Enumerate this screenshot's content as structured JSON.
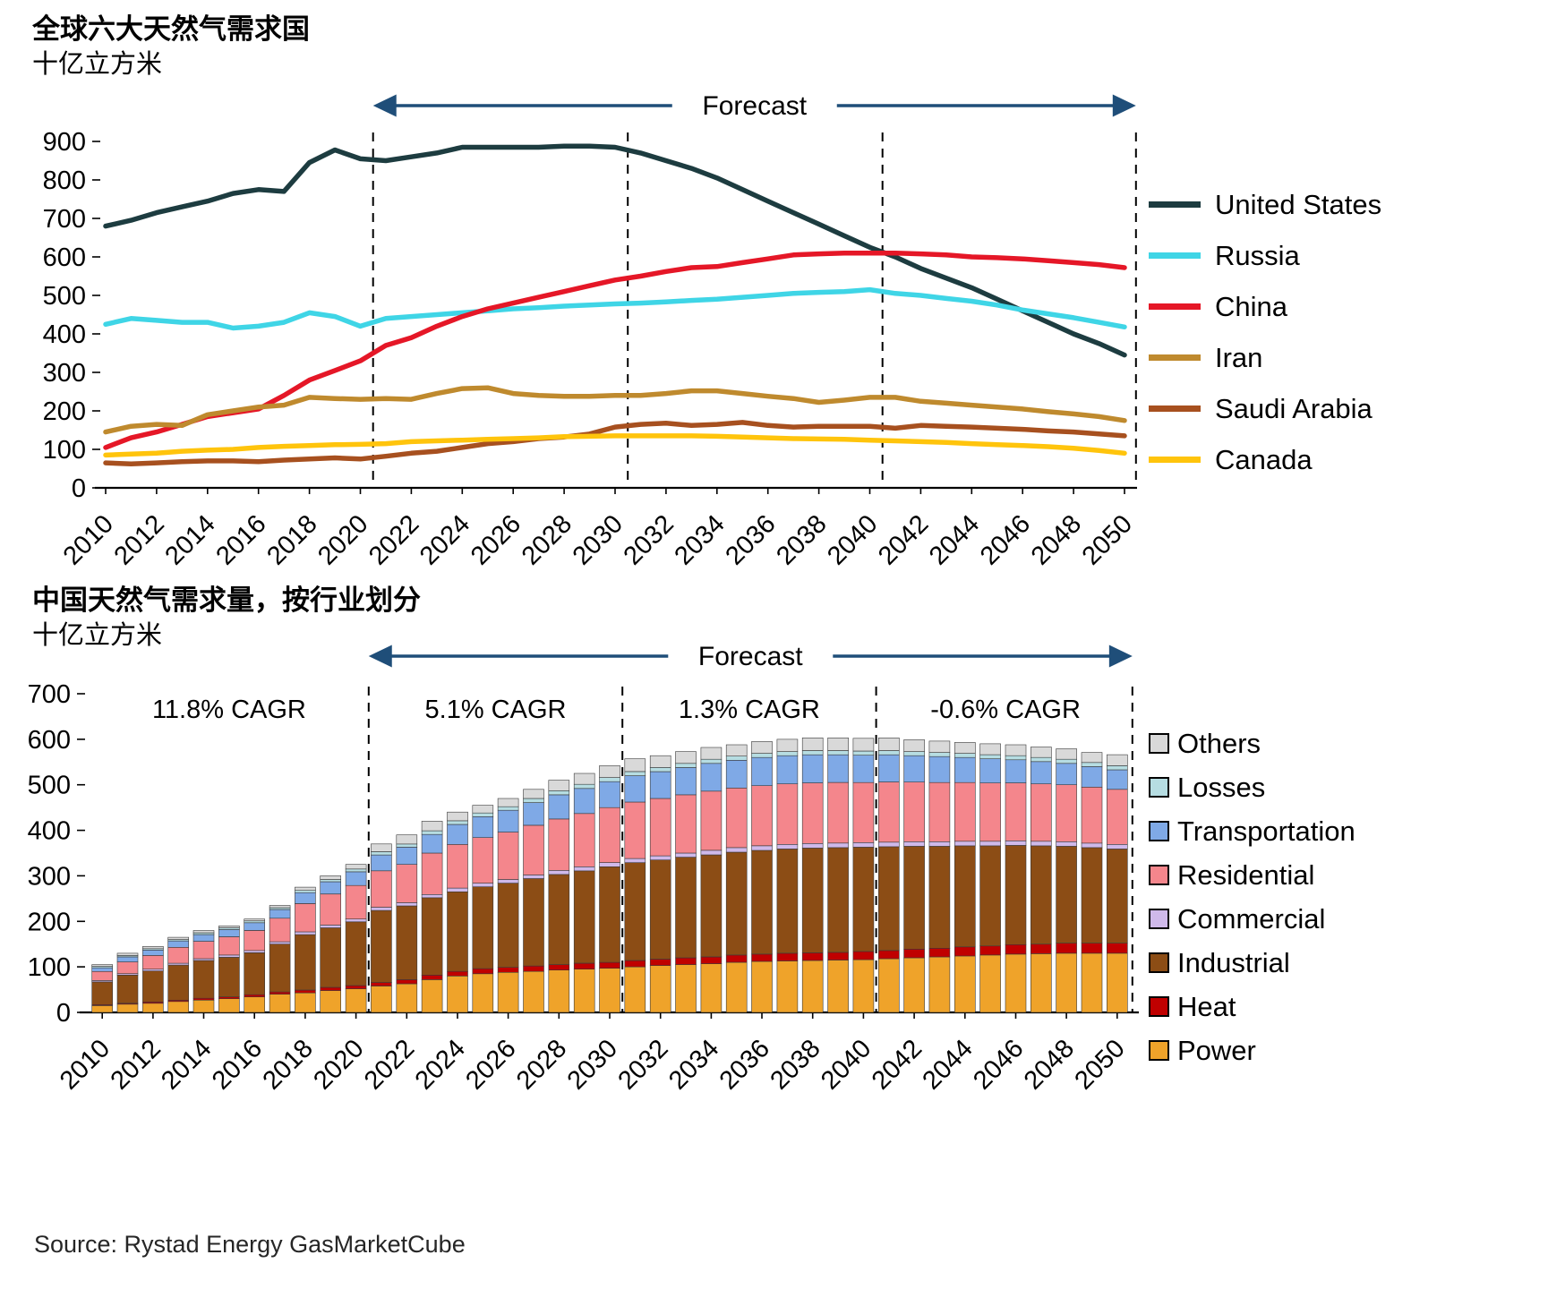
{
  "page": {
    "source_note": "Source: Rystad Energy GasMarketCube"
  },
  "chart_data": [
    {
      "type": "line",
      "title": "全球六大天然气需求国",
      "ylabel": "十亿立方米",
      "ylim": [
        0,
        900
      ],
      "ytick_step": 100,
      "grid": false,
      "legend_position": "right",
      "x": [
        2010,
        2011,
        2012,
        2013,
        2014,
        2015,
        2016,
        2017,
        2018,
        2019,
        2020,
        2021,
        2022,
        2023,
        2024,
        2025,
        2026,
        2027,
        2028,
        2029,
        2030,
        2031,
        2032,
        2033,
        2034,
        2035,
        2036,
        2037,
        2038,
        2039,
        2040,
        2041,
        2042,
        2043,
        2044,
        2045,
        2046,
        2047,
        2048,
        2049,
        2050
      ],
      "dashed_x": [
        2020.5,
        2030.5,
        2040.5,
        2050.45
      ],
      "forecast": {
        "label": "Forecast",
        "from": 2020.5,
        "to": 2050.45,
        "color": "#1f4e79"
      },
      "series": [
        {
          "name": "United States",
          "color": "#1d3c40",
          "values": [
            680,
            695,
            715,
            730,
            745,
            765,
            775,
            770,
            845,
            878,
            855,
            850,
            860,
            870,
            885,
            885,
            885,
            885,
            888,
            888,
            885,
            870,
            850,
            830,
            805,
            775,
            745,
            715,
            685,
            655,
            625,
            600,
            570,
            545,
            520,
            490,
            460,
            430,
            400,
            375,
            345
          ]
        },
        {
          "name": "Russia",
          "color": "#3fd5e6",
          "values": [
            425,
            440,
            435,
            430,
            430,
            415,
            420,
            430,
            455,
            445,
            420,
            440,
            445,
            450,
            455,
            460,
            465,
            468,
            472,
            475,
            478,
            480,
            483,
            487,
            490,
            495,
            500,
            505,
            508,
            510,
            515,
            505,
            500,
            492,
            485,
            475,
            462,
            452,
            442,
            430,
            418
          ]
        },
        {
          "name": "China",
          "color": "#e51727",
          "values": [
            105,
            130,
            145,
            165,
            185,
            195,
            205,
            240,
            280,
            305,
            330,
            370,
            390,
            420,
            445,
            465,
            480,
            495,
            510,
            525,
            540,
            550,
            562,
            572,
            575,
            585,
            595,
            605,
            608,
            610,
            610,
            610,
            608,
            605,
            600,
            598,
            595,
            590,
            585,
            580,
            572
          ]
        },
        {
          "name": "Iran",
          "color": "#bf8a2e",
          "values": [
            145,
            160,
            165,
            162,
            190,
            200,
            210,
            215,
            235,
            232,
            230,
            232,
            230,
            245,
            258,
            260,
            245,
            240,
            238,
            238,
            240,
            240,
            245,
            252,
            252,
            245,
            238,
            232,
            222,
            228,
            235,
            235,
            225,
            220,
            215,
            210,
            205,
            198,
            192,
            185,
            175
          ]
        },
        {
          "name": "Saudi Arabia",
          "color": "#a7501f",
          "values": [
            65,
            62,
            65,
            68,
            70,
            70,
            68,
            72,
            75,
            78,
            75,
            82,
            90,
            95,
            105,
            115,
            120,
            128,
            132,
            140,
            158,
            165,
            168,
            162,
            165,
            170,
            162,
            158,
            160,
            160,
            160,
            155,
            162,
            160,
            158,
            155,
            152,
            148,
            145,
            140,
            135
          ]
        },
        {
          "name": "Canada",
          "color": "#ffc40c",
          "values": [
            85,
            88,
            90,
            95,
            98,
            100,
            105,
            108,
            110,
            112,
            113,
            115,
            120,
            122,
            124,
            126,
            128,
            130,
            133,
            134,
            135,
            135,
            135,
            135,
            134,
            132,
            130,
            128,
            127,
            126,
            124,
            122,
            120,
            118,
            115,
            112,
            110,
            107,
            103,
            97,
            90
          ]
        }
      ]
    },
    {
      "type": "bar",
      "stacked": true,
      "title": "中国天然气需求量，按行业划分",
      "ylabel": "十亿立方米",
      "ylim": [
        0,
        700
      ],
      "ytick_step": 100,
      "grid": false,
      "legend_position": "right",
      "x": [
        2010,
        2011,
        2012,
        2013,
        2014,
        2015,
        2016,
        2017,
        2018,
        2019,
        2020,
        2021,
        2022,
        2023,
        2024,
        2025,
        2026,
        2027,
        2028,
        2029,
        2030,
        2031,
        2032,
        2033,
        2034,
        2035,
        2036,
        2037,
        2038,
        2039,
        2040,
        2041,
        2042,
        2043,
        2044,
        2045,
        2046,
        2047,
        2048,
        2049,
        2050
      ],
      "dashed_x": [
        2020.5,
        2030.5,
        2040.5,
        2050.6
      ],
      "forecast": {
        "label": "Forecast",
        "from": 2020.5,
        "to": 2050.6,
        "color": "#1f4e79"
      },
      "cagr_annotations": [
        {
          "label": "11.8% CAGR",
          "x": 2015.0
        },
        {
          "label": "5.1% CAGR",
          "x": 2025.5
        },
        {
          "label": "1.3% CAGR",
          "x": 2035.5
        },
        {
          "label": "-0.6% CAGR",
          "x": 2045.6
        }
      ],
      "legend_order_top_to_bottom": [
        "Others",
        "Losses",
        "Transportation",
        "Residential",
        "Commercial",
        "Industrial",
        "Heat",
        "Power"
      ],
      "series": [
        {
          "name": "Power",
          "color": "#efa32a",
          "values": [
            15,
            18,
            20,
            24,
            27,
            30,
            34,
            40,
            43,
            48,
            52,
            58,
            63,
            72,
            80,
            85,
            88,
            90,
            93,
            95,
            97,
            100,
            103,
            105,
            107,
            110,
            112,
            113,
            114,
            115,
            116,
            118,
            120,
            122,
            124,
            126,
            128,
            129,
            130,
            130,
            130
          ]
        },
        {
          "name": "Heat",
          "color": "#c00000",
          "values": [
            2,
            2,
            3,
            3,
            4,
            4,
            5,
            5,
            6,
            7,
            7,
            8,
            9,
            10,
            10,
            11,
            11,
            12,
            12,
            13,
            13,
            14,
            14,
            15,
            15,
            16,
            16,
            17,
            17,
            17,
            18,
            18,
            19,
            19,
            20,
            20,
            21,
            21,
            22,
            22,
            22
          ]
        },
        {
          "name": "Industrial",
          "color": "#8c4d15",
          "values": [
            50,
            62,
            68,
            77,
            83,
            87,
            92,
            105,
            122,
            131,
            140,
            158,
            162,
            170,
            175,
            180,
            185,
            192,
            198,
            203,
            210,
            215,
            218,
            221,
            224,
            226,
            228,
            229,
            230,
            230,
            229,
            228,
            226,
            224,
            222,
            220,
            218,
            216,
            213,
            210,
            207
          ]
        },
        {
          "name": "Commercial",
          "color": "#cfb9ea",
          "values": [
            3,
            3,
            4,
            4,
            4,
            5,
            5,
            5,
            6,
            6,
            6,
            7,
            7,
            7,
            8,
            8,
            8,
            8,
            9,
            9,
            9,
            9,
            9,
            9,
            10,
            10,
            10,
            10,
            10,
            10,
            10,
            10,
            10,
            10,
            10,
            10,
            10,
            10,
            10,
            10,
            10
          ]
        },
        {
          "name": "Residential",
          "color": "#f4868c",
          "values": [
            20,
            26,
            30,
            35,
            38,
            40,
            44,
            52,
            62,
            68,
            74,
            80,
            84,
            91,
            96,
            100,
            104,
            109,
            113,
            117,
            121,
            124,
            126,
            128,
            130,
            131,
            132,
            133,
            133,
            133,
            132,
            132,
            131,
            130,
            129,
            128,
            127,
            126,
            125,
            123,
            121
          ]
        },
        {
          "name": "Transportation",
          "color": "#7fa9e6",
          "values": [
            8,
            11,
            12,
            14,
            15,
            16,
            17,
            19,
            24,
            27,
            30,
            35,
            38,
            41,
            44,
            46,
            48,
            50,
            53,
            55,
            57,
            58,
            59,
            60,
            61,
            61,
            62,
            62,
            62,
            61,
            60,
            60,
            58,
            57,
            55,
            53,
            51,
            49,
            47,
            45,
            43
          ]
        },
        {
          "name": "Losses",
          "color": "#b6dde2",
          "values": [
            3,
            3,
            3,
            3,
            4,
            4,
            4,
            4,
            5,
            5,
            6,
            7,
            7,
            8,
            8,
            8,
            8,
            9,
            9,
            9,
            9,
            9,
            9,
            9,
            9,
            9,
            9,
            9,
            9,
            9,
            9,
            9,
            9,
            9,
            9,
            9,
            9,
            9,
            9,
            9,
            9
          ]
        },
        {
          "name": "Others",
          "color": "#d9d9d9",
          "values": [
            4,
            5,
            5,
            5,
            5,
            4,
            4,
            5,
            7,
            8,
            10,
            17,
            20,
            21,
            19,
            17,
            18,
            20,
            23,
            24,
            26,
            28,
            26,
            26,
            26,
            25,
            26,
            27,
            28,
            28,
            28,
            28,
            26,
            25,
            24,
            24,
            24,
            23,
            23,
            22,
            24
          ]
        }
      ]
    }
  ]
}
